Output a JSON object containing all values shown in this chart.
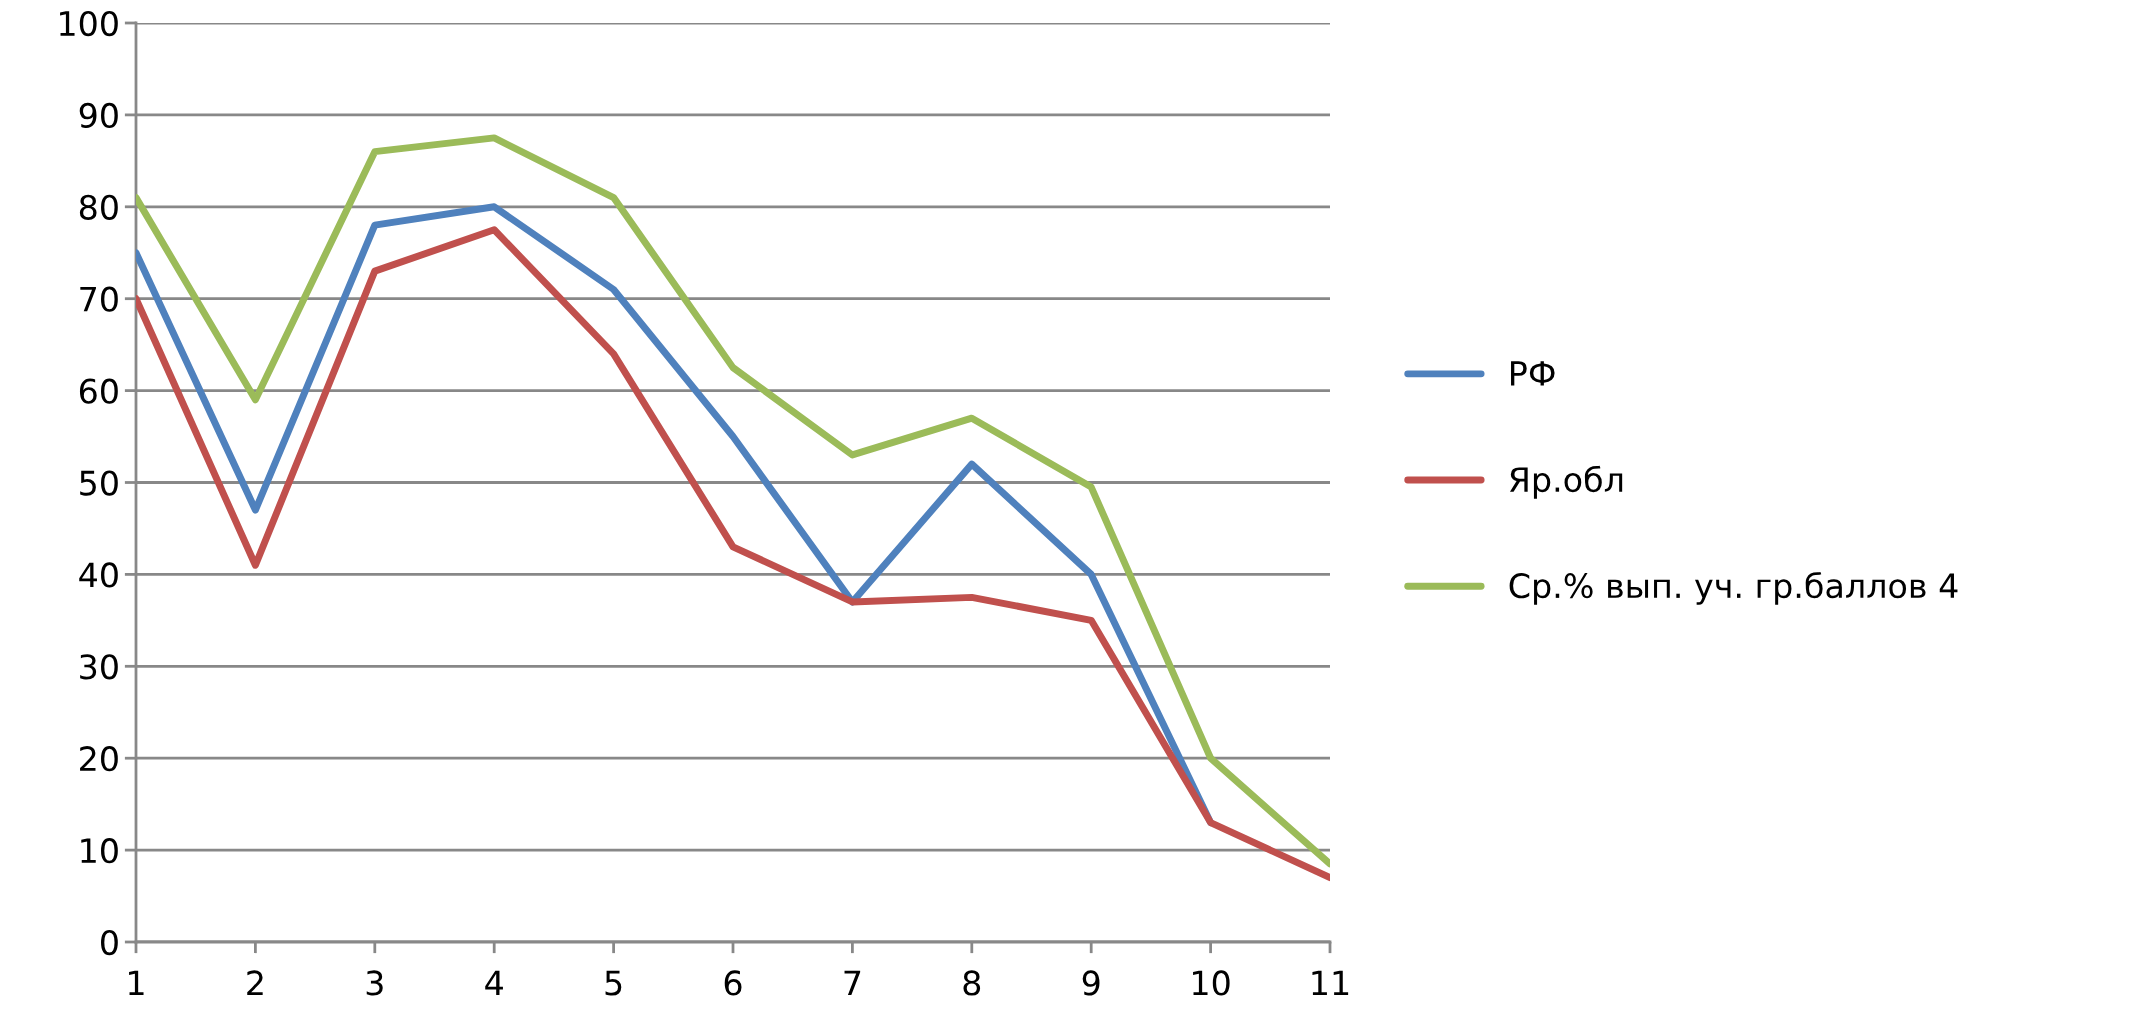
{
  "chart_data": {
    "type": "line",
    "x": [
      1,
      2,
      3,
      4,
      5,
      6,
      7,
      8,
      9,
      10,
      11
    ],
    "series": [
      {
        "name": "РФ",
        "color": "#4f81bd",
        "values": [
          75,
          47,
          78,
          80,
          71,
          55,
          37,
          52,
          40,
          13,
          null
        ]
      },
      {
        "name": "Яр.обл",
        "color": "#c0504d",
        "values": [
          70,
          41,
          73,
          77.5,
          64,
          43,
          37,
          37.5,
          35,
          13,
          7
        ]
      },
      {
        "name": "Ср.% вып. уч. гр.баллов 4",
        "color": "#9bbb59",
        "values": [
          81,
          59,
          86,
          87.5,
          81,
          62.5,
          53,
          57,
          49.5,
          20,
          8.5
        ]
      }
    ],
    "xlim": [
      1,
      11
    ],
    "xticks": [
      1,
      2,
      3,
      4,
      5,
      6,
      7,
      8,
      9,
      10,
      11
    ],
    "ylim": [
      0,
      100
    ],
    "yticks": [
      0,
      10,
      20,
      30,
      40,
      50,
      60,
      70,
      80,
      90,
      100
    ],
    "grid": "y",
    "legend": "right",
    "marker": "none",
    "line_style": "solid"
  }
}
